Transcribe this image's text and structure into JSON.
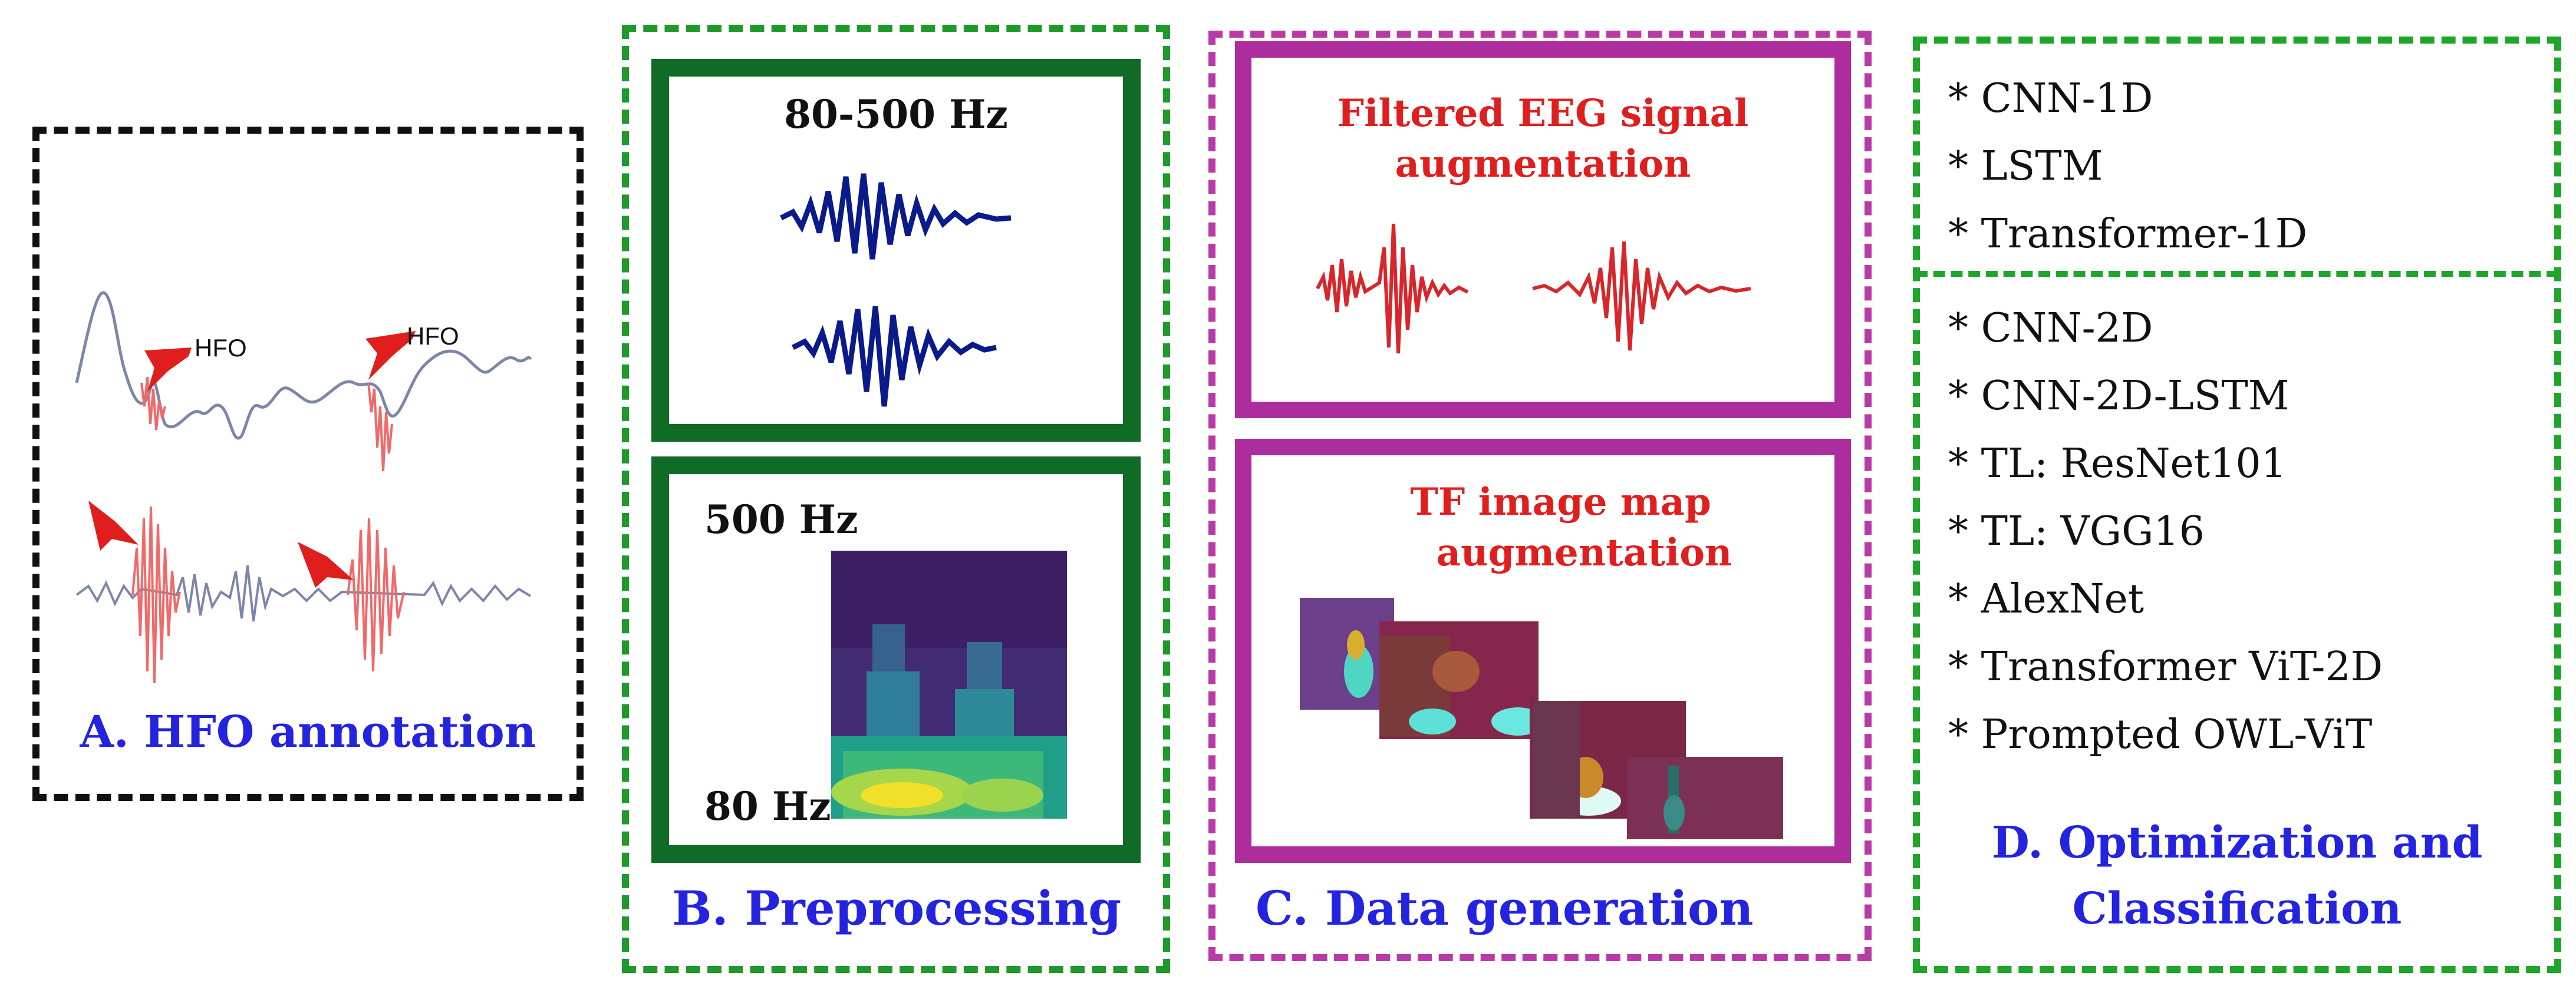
{
  "panel_a": {
    "hfo_label_1": "HFO",
    "hfo_label_2": "HFO",
    "caption": "A. HFO annotation"
  },
  "panel_b": {
    "band_label": "80-500 Hz",
    "freq_high": "500 Hz",
    "freq_low": "80 Hz",
    "caption": "B.  Preprocessing"
  },
  "panel_c": {
    "title_top_line1": "Filtered EEG signal",
    "title_top_line2": "augmentation",
    "title_bottom_line1": "TF image map",
    "title_bottom_line2": "augmentation",
    "caption": "C.  Data generation"
  },
  "panel_d": {
    "group_1d": [
      "* CNN-1D",
      "* LSTM",
      "* Transformer-1D"
    ],
    "group_2d": [
      "* CNN-2D",
      "* CNN-2D-LSTM",
      "* TL: ResNet101",
      "* TL: VGG16",
      "* AlexNet",
      "* Transformer ViT-2D",
      "* Prompted OWL-ViT"
    ],
    "caption_line1": "D. Optimization and",
    "caption_line2": "Classification"
  },
  "colors": {
    "caption_blue": "#2323e0",
    "signal_red": "#e01e1e",
    "signal_navy": "#0b1a8a",
    "eeg_gray": "#7d86a8",
    "panel_b_green": "#0f6b25",
    "panel_c_magenta": "#ad2d9e",
    "panel_d_green": "#1fa62a"
  },
  "icons": {
    "arrow": "red-arrow-icon",
    "spectrogram": "spectrogram-image",
    "tf_map": "tf-image-map"
  }
}
